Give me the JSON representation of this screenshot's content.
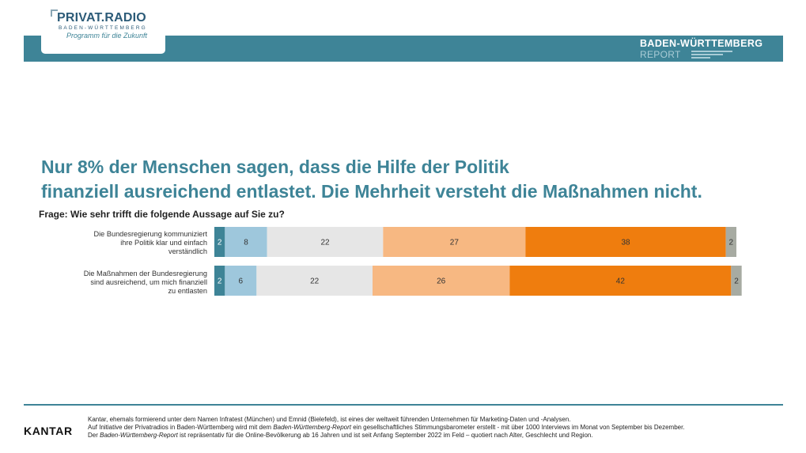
{
  "logo": {
    "name": "PRIVAT.RADIO",
    "region": "BADEN-WÜRTTEMBERG",
    "tagline": "Programm für die Zukunft"
  },
  "report": {
    "title": "BADEN-WÜRTTEMBERG",
    "subtitle": "REPORT"
  },
  "headline": {
    "line1": "Nur 8% der Menschen sagen, dass die Hilfe der Politik",
    "line2": "finanziell ausreichend entlastet. Die Mehrheit versteht die Maßnahmen nicht."
  },
  "question": "Frage: Wie sehr trifft die folgende Aussage auf Sie zu?",
  "chart_data": {
    "type": "bar",
    "orientation": "horizontal-stacked",
    "categories": [
      "Die Bundesregierung kommuniziert ihre Politik klar und einfach verständlich",
      "Die Maßnahmen der Bundesregierung sind ausreichend, um mich finanziell zu entlasten"
    ],
    "category_lines": [
      [
        "Die Bundesregierung kommuniziert",
        "ihre Politik klar und einfach",
        "verständlich"
      ],
      [
        "Die Maßnahmen der Bundesregierung",
        "sind ausreichend, um mich finanziell",
        "zu entlasten"
      ]
    ],
    "series": [
      {
        "color": "#3e8497",
        "values": [
          2,
          2
        ]
      },
      {
        "color": "#9ec7dc",
        "values": [
          8,
          6
        ]
      },
      {
        "color": "#e6e6e6",
        "values": [
          22,
          22
        ]
      },
      {
        "color": "#f7b882",
        "values": [
          27,
          26
        ]
      },
      {
        "color": "#ef7d0e",
        "values": [
          38,
          42
        ]
      },
      {
        "color": "#a7aba2",
        "values": [
          2,
          2
        ]
      }
    ],
    "label_colors": [
      "#ffffff",
      "#333333",
      "#333333",
      "#333333",
      "#333333",
      "#333333"
    ],
    "xlim": [
      0,
      99
    ]
  },
  "footer": {
    "brand": "KANTAR",
    "line1": "Kantar, ehemals formierend unter dem Namen Infratest (München) und Emnid (Bielefeld), ist eines der weltweit führenden Unternehmen für Marketing-Daten und -Analysen.",
    "line2_a": "Auf Initiative der Privatradios in Baden-Württemberg wird mit dem ",
    "line2_em": "Baden-Württemberg-Report",
    "line2_b": " ein gesellschaftliches Stimmungsbarometer erstellt - mit über 1000 Interviews im Monat von September bis Dezember.",
    "line3_a": "Der ",
    "line3_em": "Baden-Württemberg-Report",
    "line3_b": " ist repräsentativ für die Online-Bevölkerung ab 16 Jahren und ist seit Anfang September 2022 im Feld – quotiert nach Alter, Geschlecht und Region."
  }
}
